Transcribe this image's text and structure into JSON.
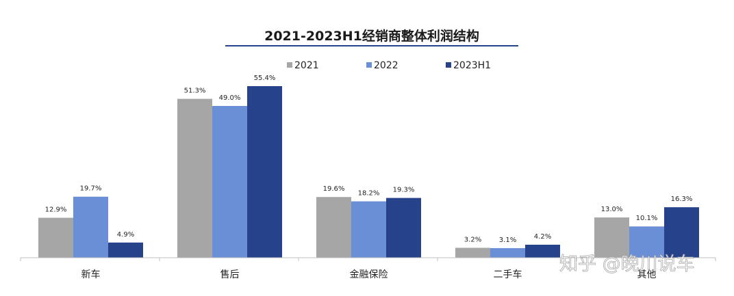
{
  "chart_data": {
    "type": "bar",
    "title": "2021-2023H1经销商整体利润结构",
    "categories": [
      "新车",
      "售后",
      "金融保险",
      "二手车",
      "其他"
    ],
    "series": [
      {
        "name": "2021",
        "values": [
          12.9,
          51.3,
          19.6,
          3.2,
          13.0
        ],
        "labels": [
          "12.9%",
          "51.3%",
          "19.6%",
          "3.2%",
          "13.0%"
        ]
      },
      {
        "name": "2022",
        "values": [
          19.7,
          49.0,
          18.2,
          3.1,
          10.1
        ],
        "labels": [
          "19.7%",
          "49.0%",
          "18.2%",
          "3.1%",
          "10.1%"
        ]
      },
      {
        "name": "2023H1",
        "values": [
          4.9,
          55.4,
          19.3,
          4.2,
          16.3
        ],
        "labels": [
          "4.9%",
          "55.4%",
          "19.3%",
          "4.2%",
          "16.3%"
        ]
      }
    ],
    "colors": [
      "#a6a6a6",
      "#6a8fd6",
      "#26428b"
    ],
    "ylim": [
      0,
      55.4
    ],
    "grid": false,
    "legend_position": "top"
  },
  "watermark": "知乎 @晚川说车"
}
